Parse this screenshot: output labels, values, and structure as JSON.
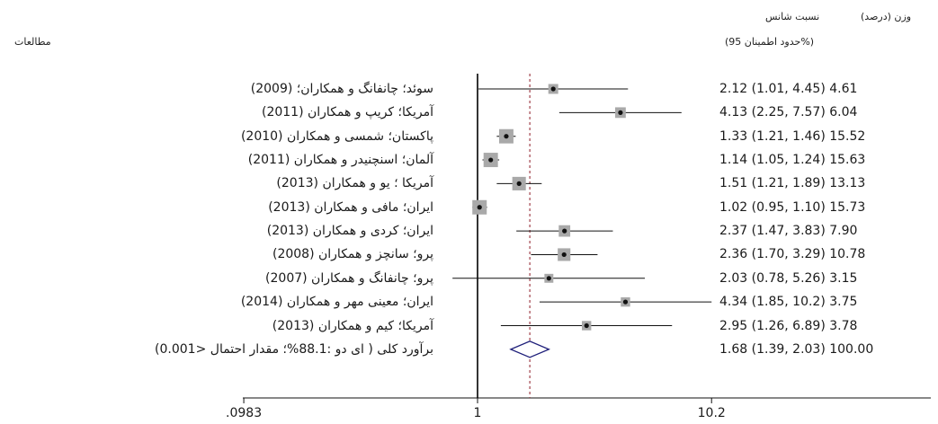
{
  "header": {
    "studies_label": "مطالعات",
    "or_label": "نسبت شانس",
    "ci_label": "(حدود اطمینان 95%)",
    "weight_label": "وزن (درصد)"
  },
  "colors": {
    "line": "#111111",
    "box": "#a9a9a9",
    "point": "#111111",
    "null_line": "#000000",
    "ref_line": "#a0404a",
    "diamond": "#1f1f7a"
  },
  "chart_data": {
    "type": "forest",
    "x_scale": "log",
    "xlim": [
      0.0983,
      10.2
    ],
    "xticks": [
      {
        "value": 0.0983,
        "label": ".0983"
      },
      {
        "value": 1,
        "label": "1"
      },
      {
        "value": 10.2,
        "label": "10.2"
      }
    ],
    "null_value": 1,
    "pooled_reference": 1.68,
    "studies": [
      {
        "label": "سوئد؛ چانفانگ  و  همکاران؛ (2009)",
        "or": 2.12,
        "lower": 1.01,
        "upper": 4.45,
        "stat": "2.12 (1.01, 4.45)",
        "weight": "4.61"
      },
      {
        "label": "آمریکا؛ کریپ و همکاران (2011)",
        "or": 4.13,
        "lower": 2.25,
        "upper": 7.57,
        "stat": "4.13 (2.25, 7.57)",
        "weight": "6.04"
      },
      {
        "label": "پاکستان؛ شمسی و همکاران (2010)",
        "or": 1.33,
        "lower": 1.21,
        "upper": 1.46,
        "stat": "1.33 (1.21, 1.46)",
        "weight": "15.52"
      },
      {
        "label": "آلمان؛ اسنچنیدر و همکاران (2011)",
        "or": 1.14,
        "lower": 1.05,
        "upper": 1.24,
        "stat": "1.14 (1.05, 1.24)",
        "weight": "15.63"
      },
      {
        "label": "آمریکا ؛ یو و همکاران (2013)",
        "or": 1.51,
        "lower": 1.21,
        "upper": 1.89,
        "stat": "1.51 (1.21, 1.89)",
        "weight": "13.13"
      },
      {
        "label": "ایران؛ مافی و همکاران (2013)",
        "or": 1.02,
        "lower": 0.95,
        "upper": 1.1,
        "stat": "1.02 (0.95, 1.10)",
        "weight": "15.73"
      },
      {
        "label": "ایران؛ کردی و همکاران (2013)",
        "or": 2.37,
        "lower": 1.47,
        "upper": 3.83,
        "stat": "2.37 (1.47, 3.83)",
        "weight": "7.90"
      },
      {
        "label": "پرو؛ سانچز و همکاران (2008)",
        "or": 2.36,
        "lower": 1.7,
        "upper": 3.29,
        "stat": "2.36 (1.70, 3.29)",
        "weight": "10.78"
      },
      {
        "label": "پرو؛ چانفانگ و همکاران (2007)",
        "or": 2.03,
        "lower": 0.78,
        "upper": 5.26,
        "stat": "2.03 (0.78, 5.26)",
        "weight": "3.15"
      },
      {
        "label": "ایران؛ معینی مهر و همکاران (2014)",
        "or": 4.34,
        "lower": 1.85,
        "upper": 10.2,
        "stat": "4.34 (1.85, 10.2)",
        "weight": "3.75"
      },
      {
        "label": "آمریکا؛ کیم و همکاران (2013)",
        "or": 2.95,
        "lower": 1.26,
        "upper": 6.89,
        "stat": "2.95 (1.26, 6.89)",
        "weight": "3.78"
      }
    ],
    "overall": {
      "label": "برآورد کلی ( ای دو :88.1%؛ مقدار احتمال <0.001)",
      "or": 1.68,
      "lower": 1.39,
      "upper": 2.03,
      "stat": "1.68 (1.39, 2.03)",
      "weight": "100.00"
    }
  }
}
